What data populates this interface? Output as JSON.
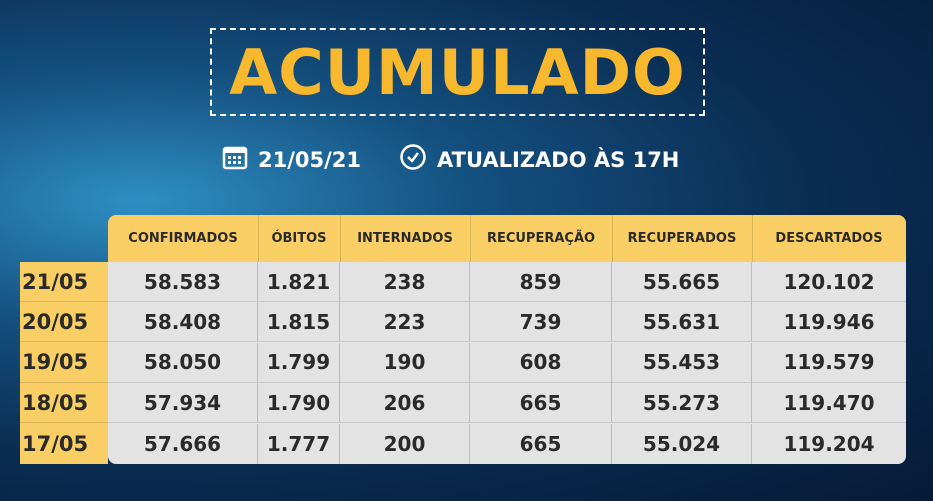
{
  "title": "ACUMULADO",
  "date": "21/05/21",
  "updated": "ATUALIZADO ÀS 17H",
  "icons": [
    "calendar-icon",
    "clock-icon"
  ],
  "colors": {
    "title": "#f7b82d",
    "header": "#f9cf65",
    "body": "#e3e3e3"
  },
  "table": {
    "headers": [
      "CONFIRMADOS",
      "ÓBITOS",
      "INTERNADOS",
      "RECUPERAÇÃO",
      "RECUPERADOS",
      "DESCARTADOS"
    ],
    "rows": [
      {
        "date": "21/05",
        "values": [
          "58.583",
          "1.821",
          "238",
          "859",
          "55.665",
          "120.102"
        ]
      },
      {
        "date": "20/05",
        "values": [
          "58.408",
          "1.815",
          "223",
          "739",
          "55.631",
          "119.946"
        ]
      },
      {
        "date": "19/05",
        "values": [
          "58.050",
          "1.799",
          "190",
          "608",
          "55.453",
          "119.579"
        ]
      },
      {
        "date": "18/05",
        "values": [
          "57.934",
          "1.790",
          "206",
          "665",
          "55.273",
          "119.470"
        ]
      },
      {
        "date": "17/05",
        "values": [
          "57.666",
          "1.777",
          "200",
          "665",
          "55.024",
          "119.204"
        ]
      }
    ]
  }
}
